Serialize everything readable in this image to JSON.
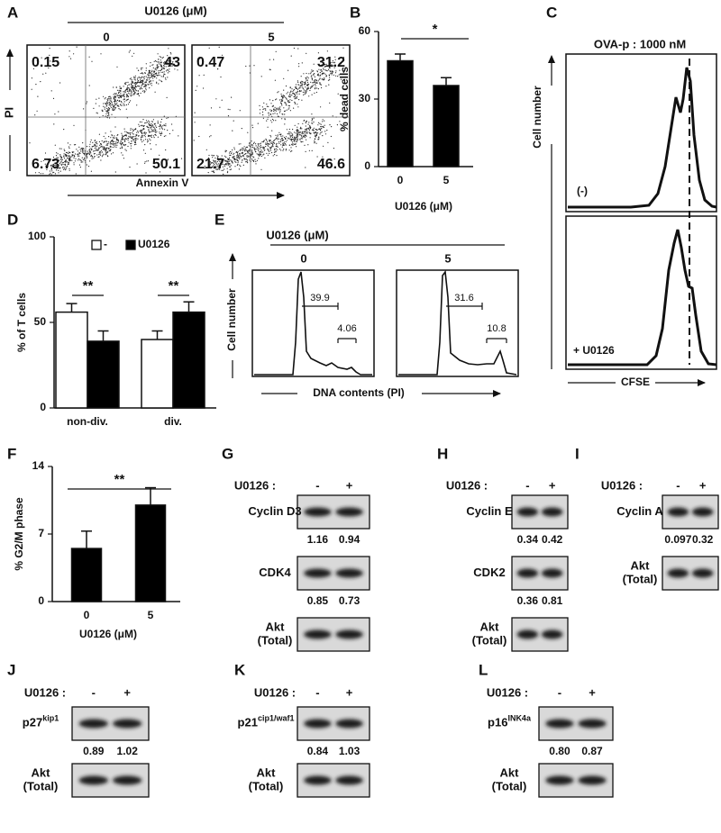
{
  "panel_labels": [
    "A",
    "B",
    "C",
    "D",
    "E",
    "F",
    "G",
    "H",
    "I",
    "J",
    "K",
    "L"
  ],
  "chart_data": [
    {
      "type": "bar",
      "y_label": "% dead cells",
      "x_label": "U0126  (μM)",
      "categories": [
        "0",
        "5"
      ],
      "values": [
        47,
        36
      ],
      "errors": [
        3,
        3.5
      ],
      "color": "#000000",
      "ylim": [
        0,
        60
      ],
      "yticks": [
        0,
        30,
        60
      ],
      "annotations": [
        "*"
      ]
    },
    {
      "type": "grouped_bar",
      "y_label": "% of T cells",
      "categories": [
        "non-div.",
        "div."
      ],
      "series": [
        {
          "name": "-",
          "color": "#ffffff",
          "values": [
            56,
            40
          ],
          "errors": [
            5,
            5
          ]
        },
        {
          "name": "U0126",
          "color": "#000000",
          "values": [
            39,
            56
          ],
          "errors": [
            6,
            6
          ]
        }
      ],
      "ylim": [
        0,
        100
      ],
      "yticks": [
        0,
        50,
        100
      ],
      "annotations": [
        "**",
        "**"
      ]
    },
    {
      "type": "bar",
      "y_label": "% G2/M phase",
      "x_label": "U0126  (μM)",
      "categories": [
        "0",
        "5"
      ],
      "values": [
        5.5,
        10
      ],
      "errors": [
        1.8,
        1.8
      ],
      "color": "#000000",
      "ylim": [
        0,
        14
      ],
      "yticks": [
        0,
        7,
        14
      ],
      "annotations": [
        "**"
      ]
    }
  ],
  "flow_scatter": {
    "header": "U0126  (μM)",
    "y_label": "PI",
    "x_label": "Annexin V",
    "plots": [
      {
        "condition": "0",
        "quadrants": [
          0.15,
          43,
          6.73,
          50.1
        ]
      },
      {
        "condition": "5",
        "quadrants": [
          0.47,
          31.2,
          21.7,
          46.6
        ]
      }
    ]
  },
  "cfse_histogram": {
    "title": "OVA-p : 1000 nM",
    "y_label": "Cell number",
    "x_label": "CFSE",
    "conditions": [
      "(-)",
      "+ U0126"
    ]
  },
  "cell_cycle": {
    "header": "U0126  (μM)",
    "y_label": "Cell number",
    "x_label": "DNA contents (PI)",
    "plots": [
      {
        "condition": "0",
        "gates": [
          39.9,
          4.06
        ]
      },
      {
        "condition": "5",
        "gates": [
          31.6,
          10.8
        ]
      }
    ]
  },
  "blots": [
    {
      "treatment": "U0126 :",
      "lanes": [
        "-",
        "+"
      ],
      "rows": [
        {
          "label": [
            "Cyclin D3"
          ],
          "ratios": [
            1.16,
            0.94
          ]
        },
        {
          "label": [
            "CDK4"
          ],
          "ratios": [
            0.85,
            0.73
          ]
        },
        {
          "label": [
            "Akt",
            "(Total)"
          ]
        }
      ]
    },
    {
      "treatment": "U0126 :",
      "lanes": [
        "-",
        "+"
      ],
      "rows": [
        {
          "label": [
            "Cyclin E"
          ],
          "ratios": [
            0.34,
            0.42
          ]
        },
        {
          "label": [
            "CDK2"
          ],
          "ratios": [
            0.36,
            0.81
          ]
        },
        {
          "label": [
            "Akt",
            "(Total)"
          ]
        }
      ]
    },
    {
      "treatment": "U0126 :",
      "lanes": [
        "-",
        "+"
      ],
      "rows": [
        {
          "label": [
            "Cyclin A"
          ],
          "ratios": [
            0.097,
            0.32
          ]
        },
        {
          "label": [
            "Akt",
            "(Total)"
          ]
        }
      ]
    },
    {
      "treatment": "U0126 :",
      "lanes": [
        "-",
        "+"
      ],
      "rows": [
        {
          "label": [
            "p27"
          ],
          "sup": "kip1",
          "ratios": [
            0.89,
            1.02
          ]
        },
        {
          "label": [
            "Akt",
            "(Total)"
          ]
        }
      ]
    },
    {
      "treatment": "U0126 :",
      "lanes": [
        "-",
        "+"
      ],
      "rows": [
        {
          "label": [
            "p21"
          ],
          "sup": "cip1/waf1",
          "ratios": [
            0.84,
            1.03
          ]
        },
        {
          "label": [
            "Akt",
            "(Total)"
          ]
        }
      ]
    },
    {
      "treatment": "U0126 :",
      "lanes": [
        "-",
        "+"
      ],
      "rows": [
        {
          "label": [
            "p16"
          ],
          "sup": "INK4a",
          "ratios": [
            "0.80",
            0.87
          ]
        },
        {
          "label": [
            "Akt",
            "(Total)"
          ]
        }
      ]
    }
  ]
}
